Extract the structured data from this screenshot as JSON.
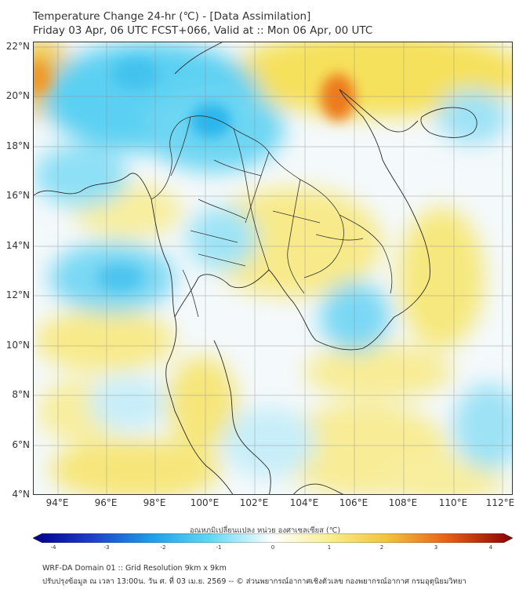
{
  "header": {
    "title_line1": "Temperature Change 24-hr (℃) - [Data Assimilation]",
    "title_line2": "Friday 03 Apr, 06 UTC FCST+066, Valid at :: Mon 06 Apr, 00 UTC"
  },
  "map": {
    "lat_labels": [
      "22°N",
      "20°N",
      "18°N",
      "16°N",
      "14°N",
      "12°N",
      "10°N",
      "8°N",
      "6°N",
      "4°N"
    ],
    "lon_labels": [
      "94°E",
      "96°E",
      "98°E",
      "100°E",
      "102°E",
      "104°E",
      "106°E",
      "108°E",
      "110°E",
      "112°E"
    ]
  },
  "colorbar": {
    "title": "อุณหภูมิเปลี่ยนแปลง หน่วย องศาเซลเซียส (℃)",
    "ticks": [
      "-4",
      "-3",
      "-2",
      "-1",
      "0",
      "1",
      "2",
      "3",
      "4"
    ]
  },
  "footer": {
    "line1": "WRF-DA Domain 01 :: Grid Resolution 9km x 9km",
    "line2": "ปรับปรุงข้อมูล ณ เวลา 13:00น. วัน ศ. ที่ 03 เม.ย. 2569 -- © ส่วนพยากรณ์อากาศเชิงตัวเลข กองพยากรณ์อากาศ กรมอุตุนิยมวิทยา"
  },
  "colors": {
    "cold_strong": "#00008b",
    "cold": "#3cc8f0",
    "neutral": "#ffffff",
    "warm": "#f5e050",
    "warm_strong": "#e8621a",
    "hot": "#8b0000"
  }
}
